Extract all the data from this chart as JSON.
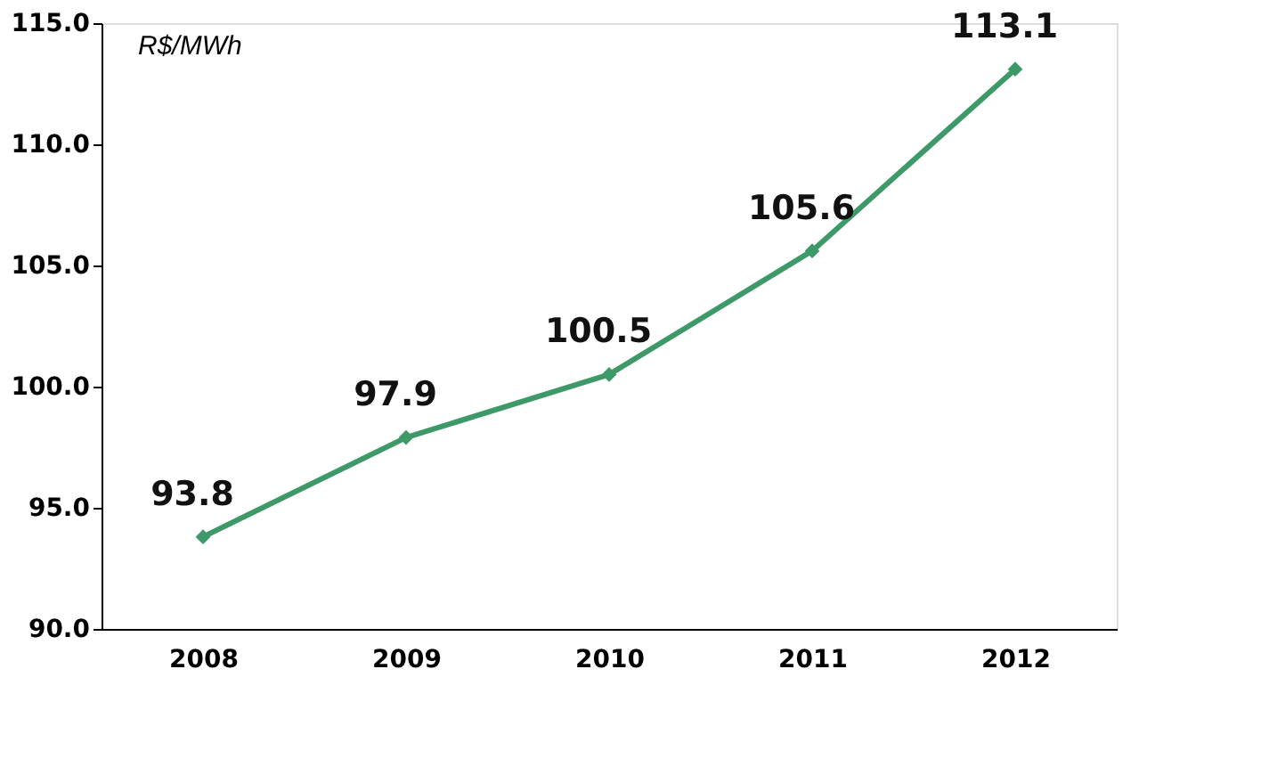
{
  "chart_data": {
    "type": "line",
    "ylabel": "R$/MWh",
    "categories": [
      "2008",
      "2009",
      "2010",
      "2011",
      "2012"
    ],
    "series": [
      {
        "color": "#3d9a68",
        "values": [
          93.8,
          97.9,
          100.5,
          105.6,
          113.1
        ]
      }
    ],
    "ylim": [
      90,
      115
    ],
    "yticks": [
      {
        "value": 90,
        "label": "90.0"
      },
      {
        "value": 95,
        "label": "95.0"
      },
      {
        "value": 100,
        "label": "100.0"
      },
      {
        "value": 105,
        "label": "105.0"
      },
      {
        "value": 110,
        "label": "110.0"
      },
      {
        "value": 115,
        "label": "115.0"
      }
    ],
    "grid": false,
    "marker": "diamond",
    "line_style": "solid",
    "data_labels": true
  }
}
